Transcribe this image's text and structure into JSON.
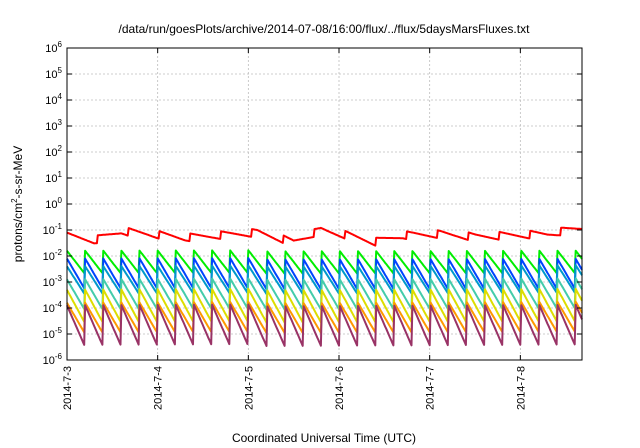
{
  "chart_data": {
    "type": "line",
    "title": "/data/run/goesPlots/archive/2014-07-08/16:00/flux/../flux/5daysMarsFluxes.txt",
    "xlabel": "Coordinated Universal Time (UTC)",
    "ylabel_parts": [
      "protons/cm",
      "2",
      "-s-sr-MeV"
    ],
    "x_ticks": [
      "2014-7-3",
      "2014-7-4",
      "2014-7-5",
      "2014-7-6",
      "2014-7-7",
      "2014-7-8"
    ],
    "xlim_days": [
      0,
      5.68
    ],
    "ylim_log10": [
      -6,
      6
    ],
    "y_scale": "log",
    "y_tick_exponents": [
      "-6",
      "-5",
      "-4",
      "-3",
      "-2",
      "-1",
      "0",
      "1",
      "2",
      "3",
      "4",
      "5",
      "6"
    ],
    "y_tick_base": "10",
    "grid": true,
    "legend": "none",
    "series": [
      {
        "color": "#ff0000",
        "period_days": 0.34,
        "envelope_x": [
          0,
          0.3,
          0.6,
          0.9,
          1.3,
          1.7,
          2.1,
          2.5,
          2.8,
          3.1,
          3.4,
          3.7,
          4.1,
          4.5,
          4.9,
          5.3,
          5.68
        ],
        "envelope_log10": [
          -1.1,
          -1.25,
          -0.9,
          -1.0,
          -1.15,
          -1.05,
          -0.95,
          -1.3,
          -0.85,
          -1.05,
          -1.3,
          -1.05,
          -1.0,
          -1.1,
          -1.05,
          -1.0,
          -0.75
        ],
        "drop_log10": 0.3
      },
      {
        "color": "#00ee00",
        "period_days": 0.2,
        "envelope_x": [
          0,
          5.68
        ],
        "envelope_log10": [
          -1.8,
          -1.75
        ],
        "drop_log10": 0.9
      },
      {
        "color": "#0044ff",
        "period_days": 0.2,
        "envelope_x": [
          0,
          5.68
        ],
        "envelope_log10": [
          -2.1,
          -2.05
        ],
        "drop_log10": 1.2
      },
      {
        "color": "#0099cc",
        "period_days": 0.2,
        "envelope_x": [
          0,
          5.68
        ],
        "envelope_log10": [
          -2.4,
          -2.3
        ],
        "drop_log10": 1.1
      },
      {
        "color": "#44ccaa",
        "period_days": 0.2,
        "envelope_x": [
          0,
          5.68
        ],
        "envelope_log10": [
          -2.9,
          -2.8
        ],
        "drop_log10": 1.2
      },
      {
        "color": "#dddd00",
        "period_days": 0.2,
        "envelope_x": [
          0,
          5.68
        ],
        "envelope_log10": [
          -3.3,
          -3.2
        ],
        "drop_log10": 1.3
      },
      {
        "color": "#ff9900",
        "period_days": 0.2,
        "envelope_x": [
          0,
          5.68
        ],
        "envelope_log10": [
          -3.8,
          -3.7
        ],
        "drop_log10": 1.2
      },
      {
        "color": "#993366",
        "period_days": 0.2,
        "envelope_x": [
          0,
          5.68
        ],
        "envelope_log10": [
          -3.9,
          -3.8
        ],
        "drop_log10": 1.6
      }
    ]
  }
}
